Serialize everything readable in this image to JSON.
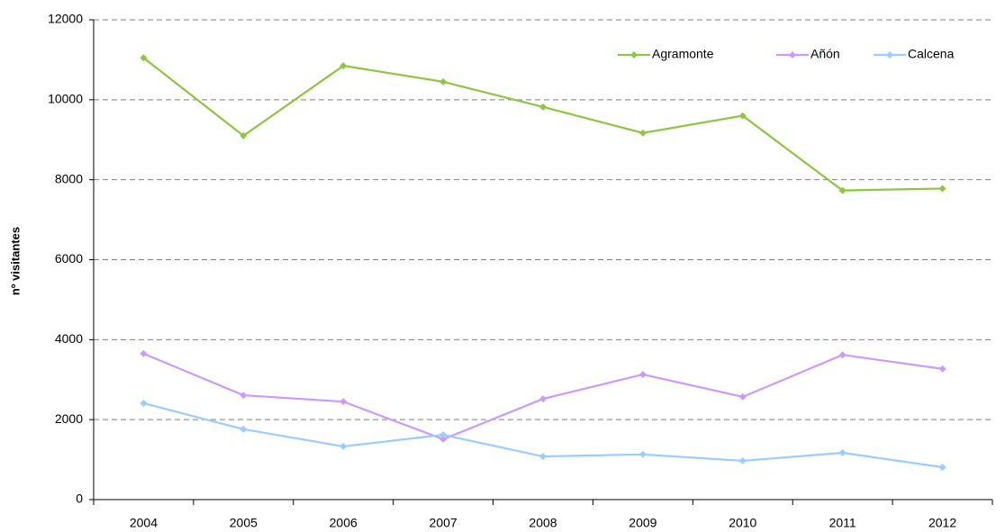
{
  "chart_data": {
    "type": "line",
    "y_label": "nº visitantes",
    "categories": [
      "2004",
      "2005",
      "2006",
      "2007",
      "2008",
      "2009",
      "2010",
      "2011",
      "2012"
    ],
    "series": [
      {
        "name": "Agramonte",
        "color": "#8dc63f",
        "values": [
          11050,
          9100,
          10850,
          10450,
          9820,
          9170,
          9600,
          7730,
          7780
        ]
      },
      {
        "name": "Añón",
        "color": "#cc99ff",
        "values": [
          3650,
          2610,
          2450,
          1510,
          2520,
          3130,
          2570,
          3620,
          3270
        ]
      },
      {
        "name": "Calcena",
        "color": "#99ccff",
        "values": [
          2410,
          1760,
          1330,
          1620,
          1080,
          1130,
          970,
          1170,
          810
        ]
      }
    ],
    "ylim": [
      0,
      12000
    ],
    "yticks": [
      0,
      2000,
      4000,
      6000,
      8000,
      10000,
      12000
    ],
    "grid": true,
    "legend": "top-right"
  }
}
